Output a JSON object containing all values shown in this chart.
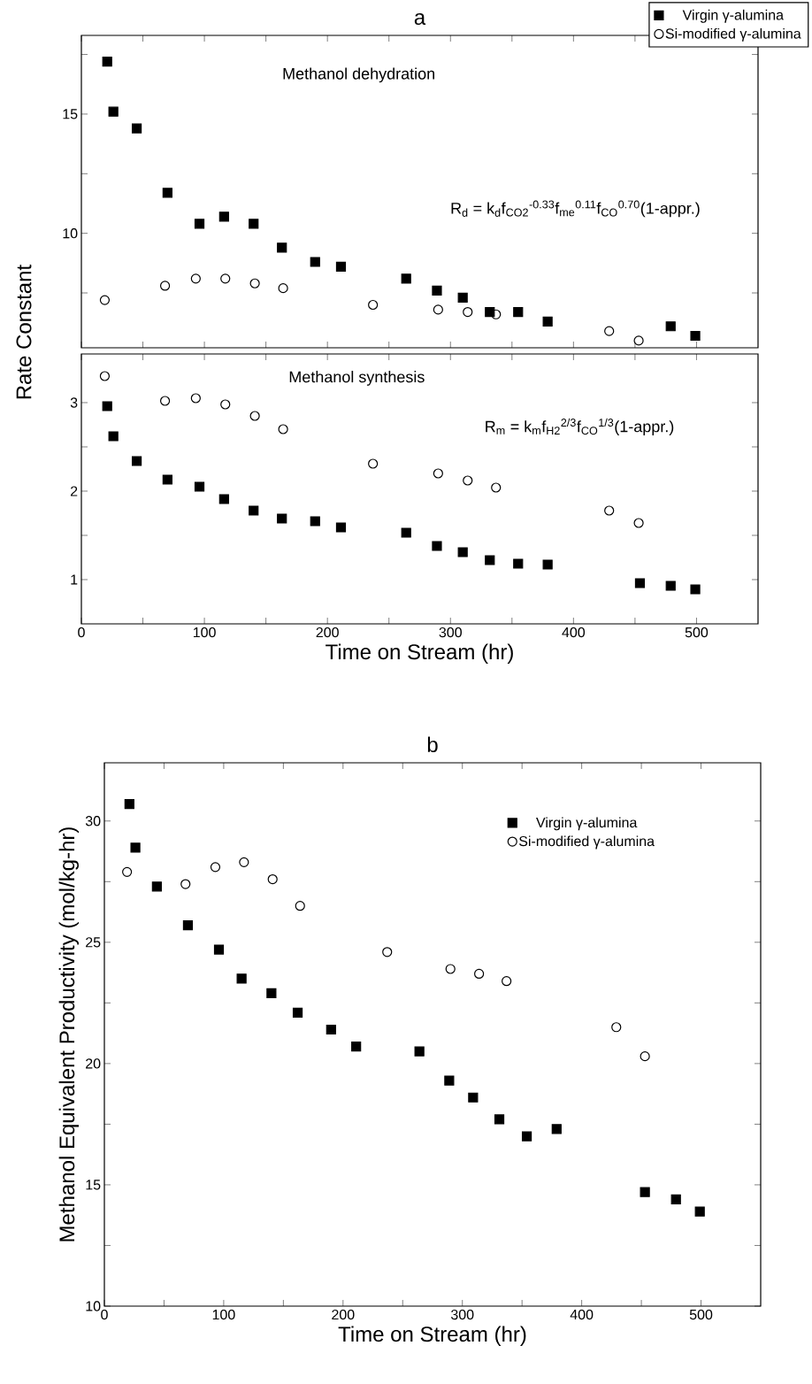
{
  "chart_data": [
    {
      "type": "scatter",
      "title": "a",
      "annotations": [
        "Methanol dehydration",
        "R$_{d}$ = k$_{d}$f$_{CO2}$$^{-0.33}$f$_{me}$$^{0.11}$f$_{CO}$$^{0.70}$(1-appr.)"
      ],
      "series": [
        {
          "name": "Virgin γ-alumina",
          "color": "#000000",
          "marker": "square",
          "x": [
            21,
            26,
            45,
            70,
            96,
            116,
            140,
            163,
            190,
            211,
            264,
            289,
            310,
            332,
            355,
            379,
            454,
            479,
            499
          ],
          "values": [
            17.2,
            15.1,
            14.4,
            11.7,
            10.4,
            10.7,
            10.4,
            9.4,
            8.8,
            8.6,
            8.1,
            7.6,
            7.3,
            6.7,
            6.7,
            6.3,
            null,
            6.1,
            5.7
          ]
        },
        {
          "name": "Si-modified γ-alumina",
          "color": "#000000",
          "marker": "circle",
          "x": [
            19,
            68,
            93,
            117,
            141,
            164,
            237,
            290,
            314,
            337,
            429,
            453
          ],
          "values": [
            7.2,
            7.8,
            8.1,
            8.1,
            7.9,
            7.7,
            7.0,
            6.8,
            6.7,
            6.6,
            5.9,
            5.5
          ]
        }
      ],
      "xlim": [
        0,
        550
      ],
      "ylim": [
        5.2,
        18.3
      ],
      "xticks": [
        0,
        {
          "value": 50,
          "label": null
        },
        100,
        {
          "value": 150,
          "label": null
        },
        200,
        {
          "value": 250,
          "label": null
        },
        300,
        {
          "value": 350,
          "label": null
        },
        400,
        {
          "value": 450,
          "label": null
        },
        500
      ],
      "yticks": [
        {
          "value": 7.5,
          "label": null
        },
        10,
        {
          "value": 12.5,
          "label": null
        },
        15,
        {
          "value": 17.5,
          "label": null
        }
      ],
      "tick_labels": "y",
      "legend": "top right",
      "grid": false
    },
    {
      "type": "scatter",
      "ylabel": "Rate Constant",
      "xlabel": "Time on Stream (hr)",
      "annotations": [
        "Methanol synthesis",
        "R$_{m}$ = k$_{m}$f$_{H2}$$^{2/3}$f$_{CO}$$^{1/3}$(1-appr.)"
      ],
      "series": [
        {
          "color": "#000000",
          "marker": "square",
          "x": [
            21,
            26,
            45,
            70,
            96,
            116,
            140,
            163,
            190,
            211,
            264,
            289,
            310,
            332,
            355,
            379,
            454,
            479,
            499
          ],
          "values": [
            2.96,
            2.62,
            2.34,
            2.13,
            2.05,
            1.91,
            1.78,
            1.69,
            1.66,
            1.59,
            1.53,
            1.38,
            1.31,
            1.22,
            1.18,
            1.17,
            0.96,
            0.93,
            0.89
          ]
        },
        {
          "color": "#000000",
          "marker": "circle",
          "x": [
            19,
            68,
            93,
            117,
            141,
            164,
            237,
            290,
            314,
            337,
            429,
            453
          ],
          "values": [
            3.3,
            3.02,
            3.05,
            2.98,
            2.85,
            2.7,
            2.31,
            2.2,
            2.12,
            2.04,
            1.78,
            1.64
          ]
        }
      ],
      "xlim": [
        0,
        550
      ],
      "ylim": [
        0.5,
        3.55
      ],
      "xticks": [
        0,
        {
          "value": 50,
          "label": null
        },
        100,
        {
          "value": 150,
          "label": null
        },
        200,
        {
          "value": 250,
          "label": null
        },
        300,
        {
          "value": 350,
          "label": null
        },
        400,
        {
          "value": 450,
          "label": null
        },
        500
      ],
      "yticks": [
        1,
        {
          "value": 1.5,
          "label": null
        },
        2,
        {
          "value": 2.5,
          "label": null
        },
        3
      ],
      "grid": false
    },
    {
      "type": "scatter",
      "title": "b",
      "xlabel": "Time on Stream (hr)",
      "ylabel": "Methanol Equivalent Productivity (mol/kg-hr)",
      "series": [
        {
          "name": "Virgin γ-alumina",
          "color": "#000000",
          "marker": "square",
          "x": [
            21,
            26,
            44,
            70,
            96,
            115,
            140,
            162,
            190,
            211,
            264,
            289,
            309,
            331,
            354,
            379,
            453,
            479,
            499
          ],
          "values": [
            30.7,
            28.9,
            27.3,
            25.7,
            24.7,
            23.5,
            22.9,
            22.1,
            21.4,
            20.7,
            20.5,
            19.3,
            18.6,
            17.7,
            17.0,
            17.3,
            14.7,
            14.4,
            13.9
          ]
        },
        {
          "name": "Si-modified γ-alumina",
          "color": "#000000",
          "marker": "circle",
          "x": [
            19,
            68,
            93,
            117,
            141,
            164,
            237,
            290,
            314,
            337,
            429,
            453
          ],
          "values": [
            27.9,
            27.4,
            28.1,
            28.3,
            27.6,
            26.5,
            24.6,
            23.9,
            23.7,
            23.4,
            21.5,
            20.3
          ]
        }
      ],
      "xlim": [
        0,
        550
      ],
      "ylim": [
        10,
        32.4
      ],
      "xticks": [
        0,
        {
          "value": 50,
          "label": null
        },
        100,
        {
          "value": 150,
          "label": null
        },
        200,
        {
          "value": 250,
          "label": null
        },
        300,
        {
          "value": 350,
          "label": null
        },
        400,
        {
          "value": 450,
          "label": null
        },
        500
      ],
      "yticks": [
        10,
        {
          "value": 12.5,
          "label": null
        },
        15,
        {
          "value": 17.5,
          "label": null
        },
        20,
        {
          "value": 22.5,
          "label": null
        },
        25,
        {
          "value": 27.5,
          "label": null
        },
        30
      ],
      "legend": "top right",
      "grid": false
    }
  ]
}
